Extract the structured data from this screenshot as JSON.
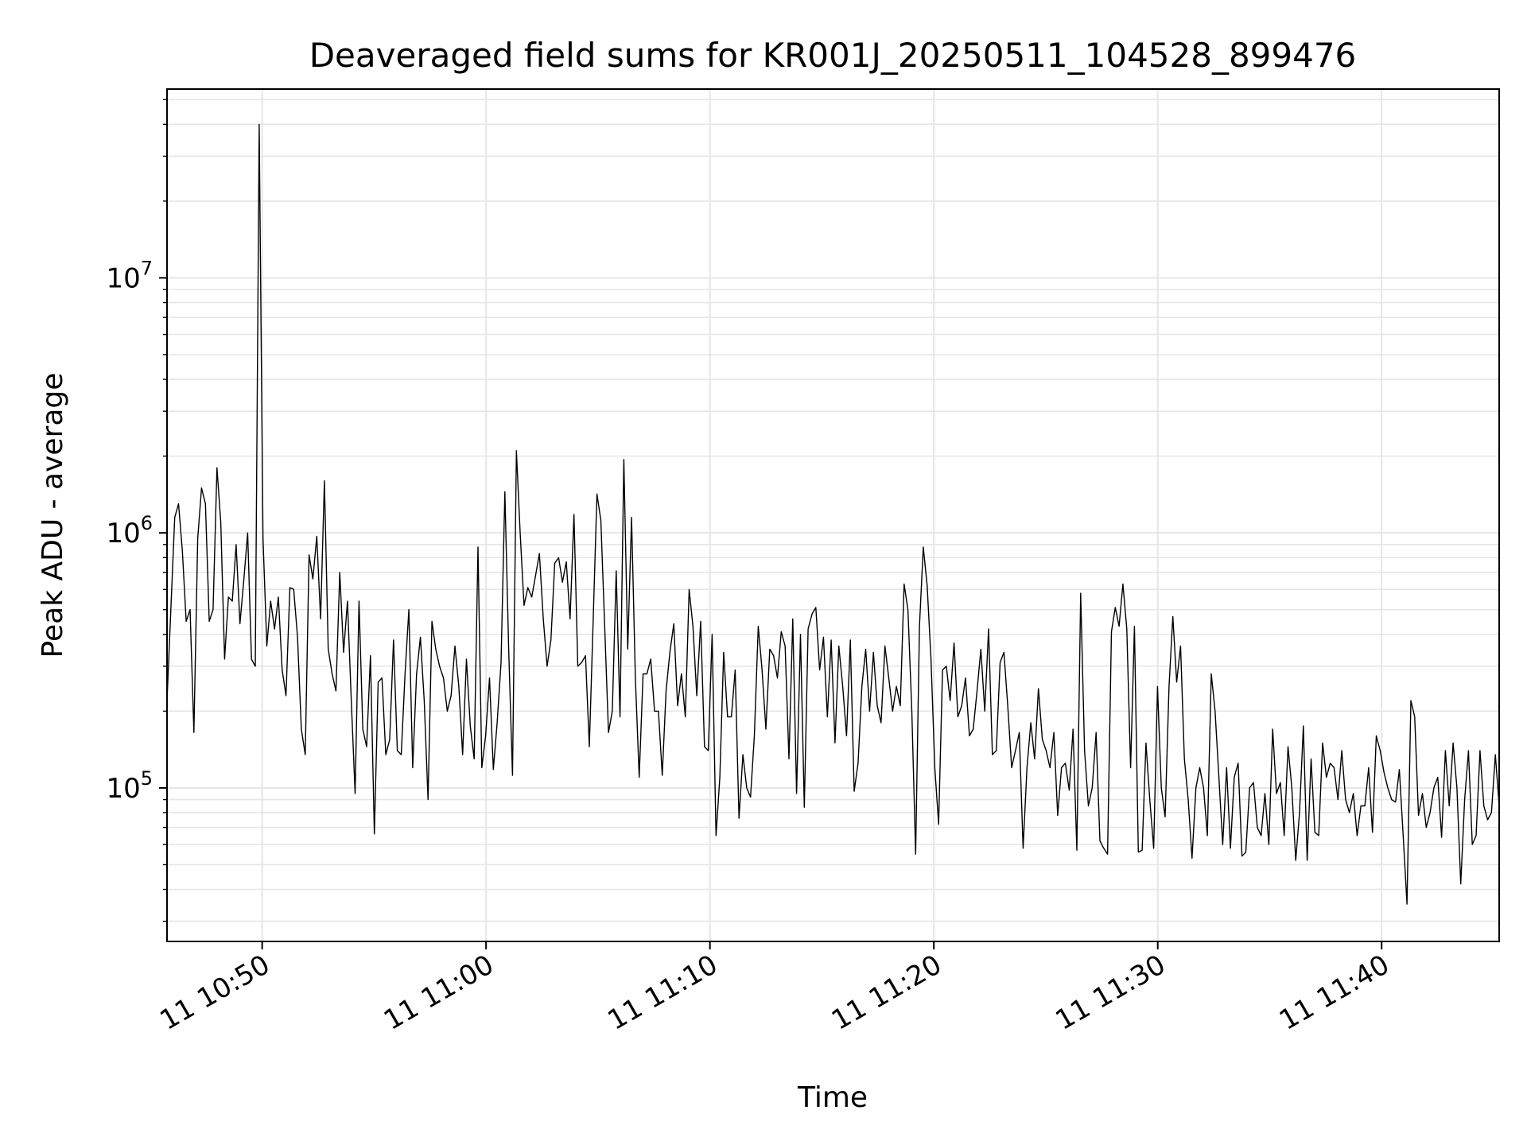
{
  "chart_data": {
    "type": "line",
    "title": "Deaveraged field sums for KR001J_20250511_104528_899476",
    "xlabel": "Time",
    "ylabel": "Peak ADU - average",
    "yscale": "log",
    "ylim": [
      25000,
      55000000
    ],
    "xlim": [
      "2025-05-11 10:45:45",
      "2025-05-11 11:45:15"
    ],
    "grid": true,
    "line_color": "#000000",
    "grid_color": "#e6e6e6",
    "x_ticks": [
      {
        "t": "2025-05-11 10:50:00",
        "label": "11 10:50"
      },
      {
        "t": "2025-05-11 11:00:00",
        "label": "11 11:00"
      },
      {
        "t": "2025-05-11 11:10:00",
        "label": "11 11:10"
      },
      {
        "t": "2025-05-11 11:20:00",
        "label": "11 11:20"
      },
      {
        "t": "2025-05-11 11:30:00",
        "label": "11 11:30"
      },
      {
        "t": "2025-05-11 11:40:00",
        "label": "11 11:40"
      }
    ],
    "y_ticks": [
      {
        "value": 100000,
        "base": "10",
        "exp": "5"
      },
      {
        "value": 1000000,
        "base": "10",
        "exp": "6"
      },
      {
        "value": 10000000,
        "base": "10",
        "exp": "7"
      }
    ],
    "series": [
      {
        "x_start": "2025-05-11 10:45:45",
        "x_end": "2025-05-11 11:45:15",
        "values": [
          220000,
          500000,
          1150000,
          1300000,
          850000,
          450000,
          500000,
          165000,
          950000,
          1500000,
          1300000,
          450000,
          500000,
          1800000,
          1100000,
          320000,
          560000,
          540000,
          900000,
          440000,
          650000,
          1000000,
          320000,
          300000,
          40000000,
          950000,
          360000,
          540000,
          420000,
          560000,
          290000,
          230000,
          610000,
          600000,
          390000,
          170000,
          135000,
          820000,
          660000,
          970000,
          460000,
          1600000,
          350000,
          280000,
          240000,
          700000,
          340000,
          540000,
          220000,
          95000,
          540000,
          170000,
          145000,
          330000,
          66000,
          260000,
          270000,
          135000,
          155000,
          380000,
          140000,
          135000,
          280000,
          500000,
          120000,
          280000,
          390000,
          220000,
          90000,
          450000,
          350000,
          300000,
          270000,
          200000,
          230000,
          360000,
          250000,
          135000,
          320000,
          175000,
          130000,
          880000,
          120000,
          160000,
          270000,
          118000,
          180000,
          310000,
          1450000,
          350000,
          112000,
          2100000,
          990000,
          520000,
          610000,
          560000,
          680000,
          830000,
          460000,
          300000,
          380000,
          760000,
          800000,
          640000,
          770000,
          460000,
          1180000,
          300000,
          310000,
          330000,
          145000,
          450000,
          1420000,
          1120000,
          430000,
          165000,
          200000,
          710000,
          190000,
          1940000,
          350000,
          1150000,
          270000,
          110000,
          280000,
          280000,
          320000,
          200000,
          200000,
          112000,
          240000,
          340000,
          440000,
          210000,
          280000,
          190000,
          600000,
          430000,
          230000,
          450000,
          145000,
          140000,
          400000,
          65000,
          110000,
          340000,
          190000,
          190000,
          290000,
          76000,
          135000,
          100000,
          92000,
          160000,
          430000,
          290000,
          170000,
          350000,
          330000,
          270000,
          410000,
          360000,
          130000,
          460000,
          95000,
          400000,
          84000,
          420000,
          480000,
          510000,
          290000,
          390000,
          190000,
          380000,
          150000,
          360000,
          250000,
          160000,
          380000,
          97000,
          125000,
          250000,
          350000,
          200000,
          340000,
          210000,
          180000,
          360000,
          270000,
          200000,
          250000,
          210000,
          630000,
          500000,
          200000,
          55000,
          430000,
          880000,
          620000,
          320000,
          120000,
          72000,
          290000,
          300000,
          220000,
          370000,
          190000,
          210000,
          270000,
          160000,
          170000,
          240000,
          350000,
          200000,
          420000,
          135000,
          140000,
          310000,
          340000,
          210000,
          120000,
          140000,
          165000,
          58000,
          120000,
          180000,
          130000,
          245000,
          155000,
          140000,
          120000,
          165000,
          78000,
          120000,
          125000,
          98000,
          170000,
          57000,
          580000,
          140000,
          85000,
          100000,
          165000,
          62000,
          58000,
          55000,
          410000,
          510000,
          430000,
          630000,
          420000,
          120000,
          430000,
          56000,
          57000,
          150000,
          90000,
          58000,
          250000,
          100000,
          77000,
          250000,
          470000,
          260000,
          360000,
          130000,
          90000,
          53000,
          100000,
          120000,
          100000,
          65000,
          280000,
          200000,
          110000,
          60000,
          120000,
          58000,
          110000,
          125000,
          54000,
          56000,
          100000,
          105000,
          70000,
          65000,
          95000,
          60000,
          170000,
          95000,
          105000,
          65000,
          145000,
          100000,
          52000,
          80000,
          175000,
          52000,
          130000,
          67000,
          65000,
          150000,
          110000,
          125000,
          120000,
          90000,
          140000,
          90000,
          80000,
          95000,
          65000,
          85000,
          85000,
          120000,
          67000,
          160000,
          140000,
          115000,
          100000,
          90000,
          88000,
          118000,
          65000,
          35000,
          220000,
          190000,
          78000,
          95000,
          70000,
          80000,
          100000,
          110000,
          64000,
          140000,
          85000,
          150000,
          100000,
          42000,
          90000,
          140000,
          60000,
          65000,
          140000,
          85000,
          75000,
          80000,
          135000,
          85000
        ]
      }
    ]
  }
}
